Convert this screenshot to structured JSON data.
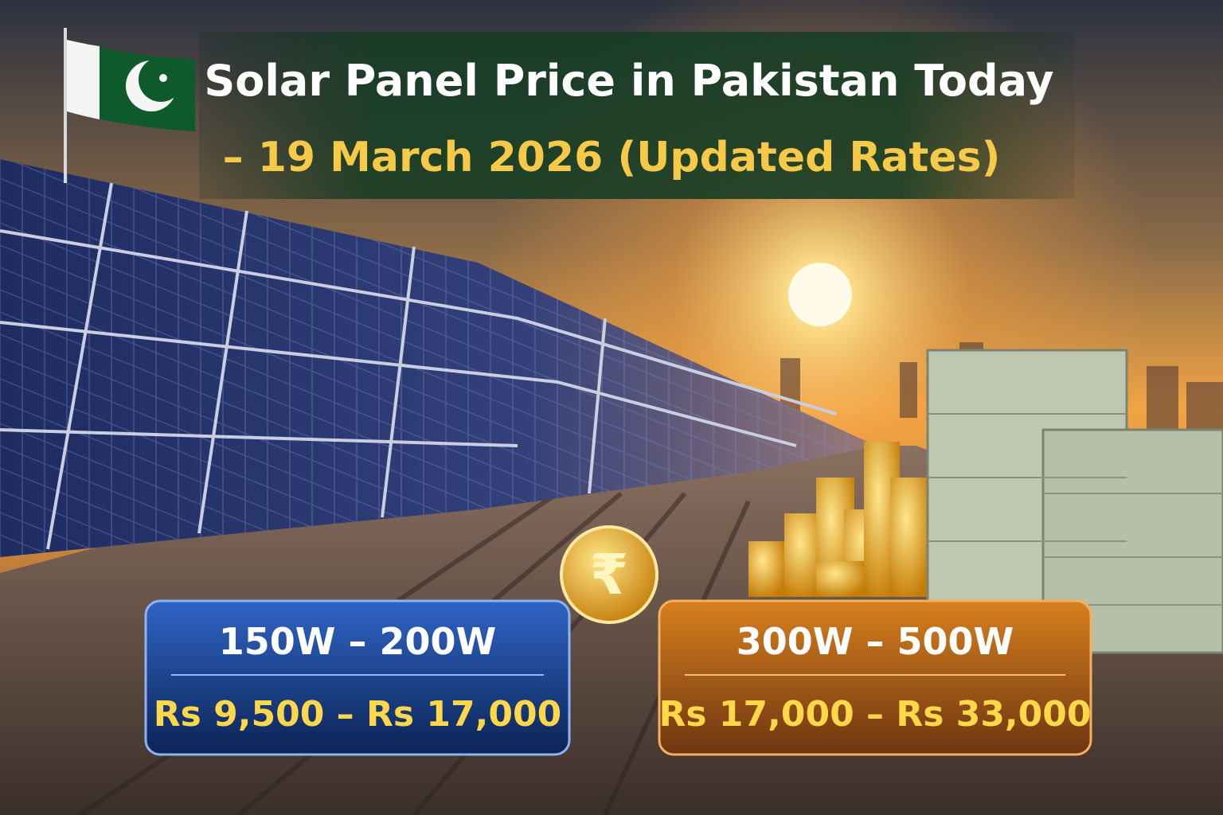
{
  "header": {
    "title_line1": "Solar Panel Price in Pakistan Today",
    "title_line2": "– 19 March 2026 (Updated Rates)"
  },
  "coin_symbol": "₹",
  "cards": [
    {
      "range": "150W – 200W",
      "price": "Rs 9,500 – Rs 17,000"
    },
    {
      "range": "300W – 500W",
      "price": "Rs 17,000 – Rs 33,000"
    }
  ]
}
